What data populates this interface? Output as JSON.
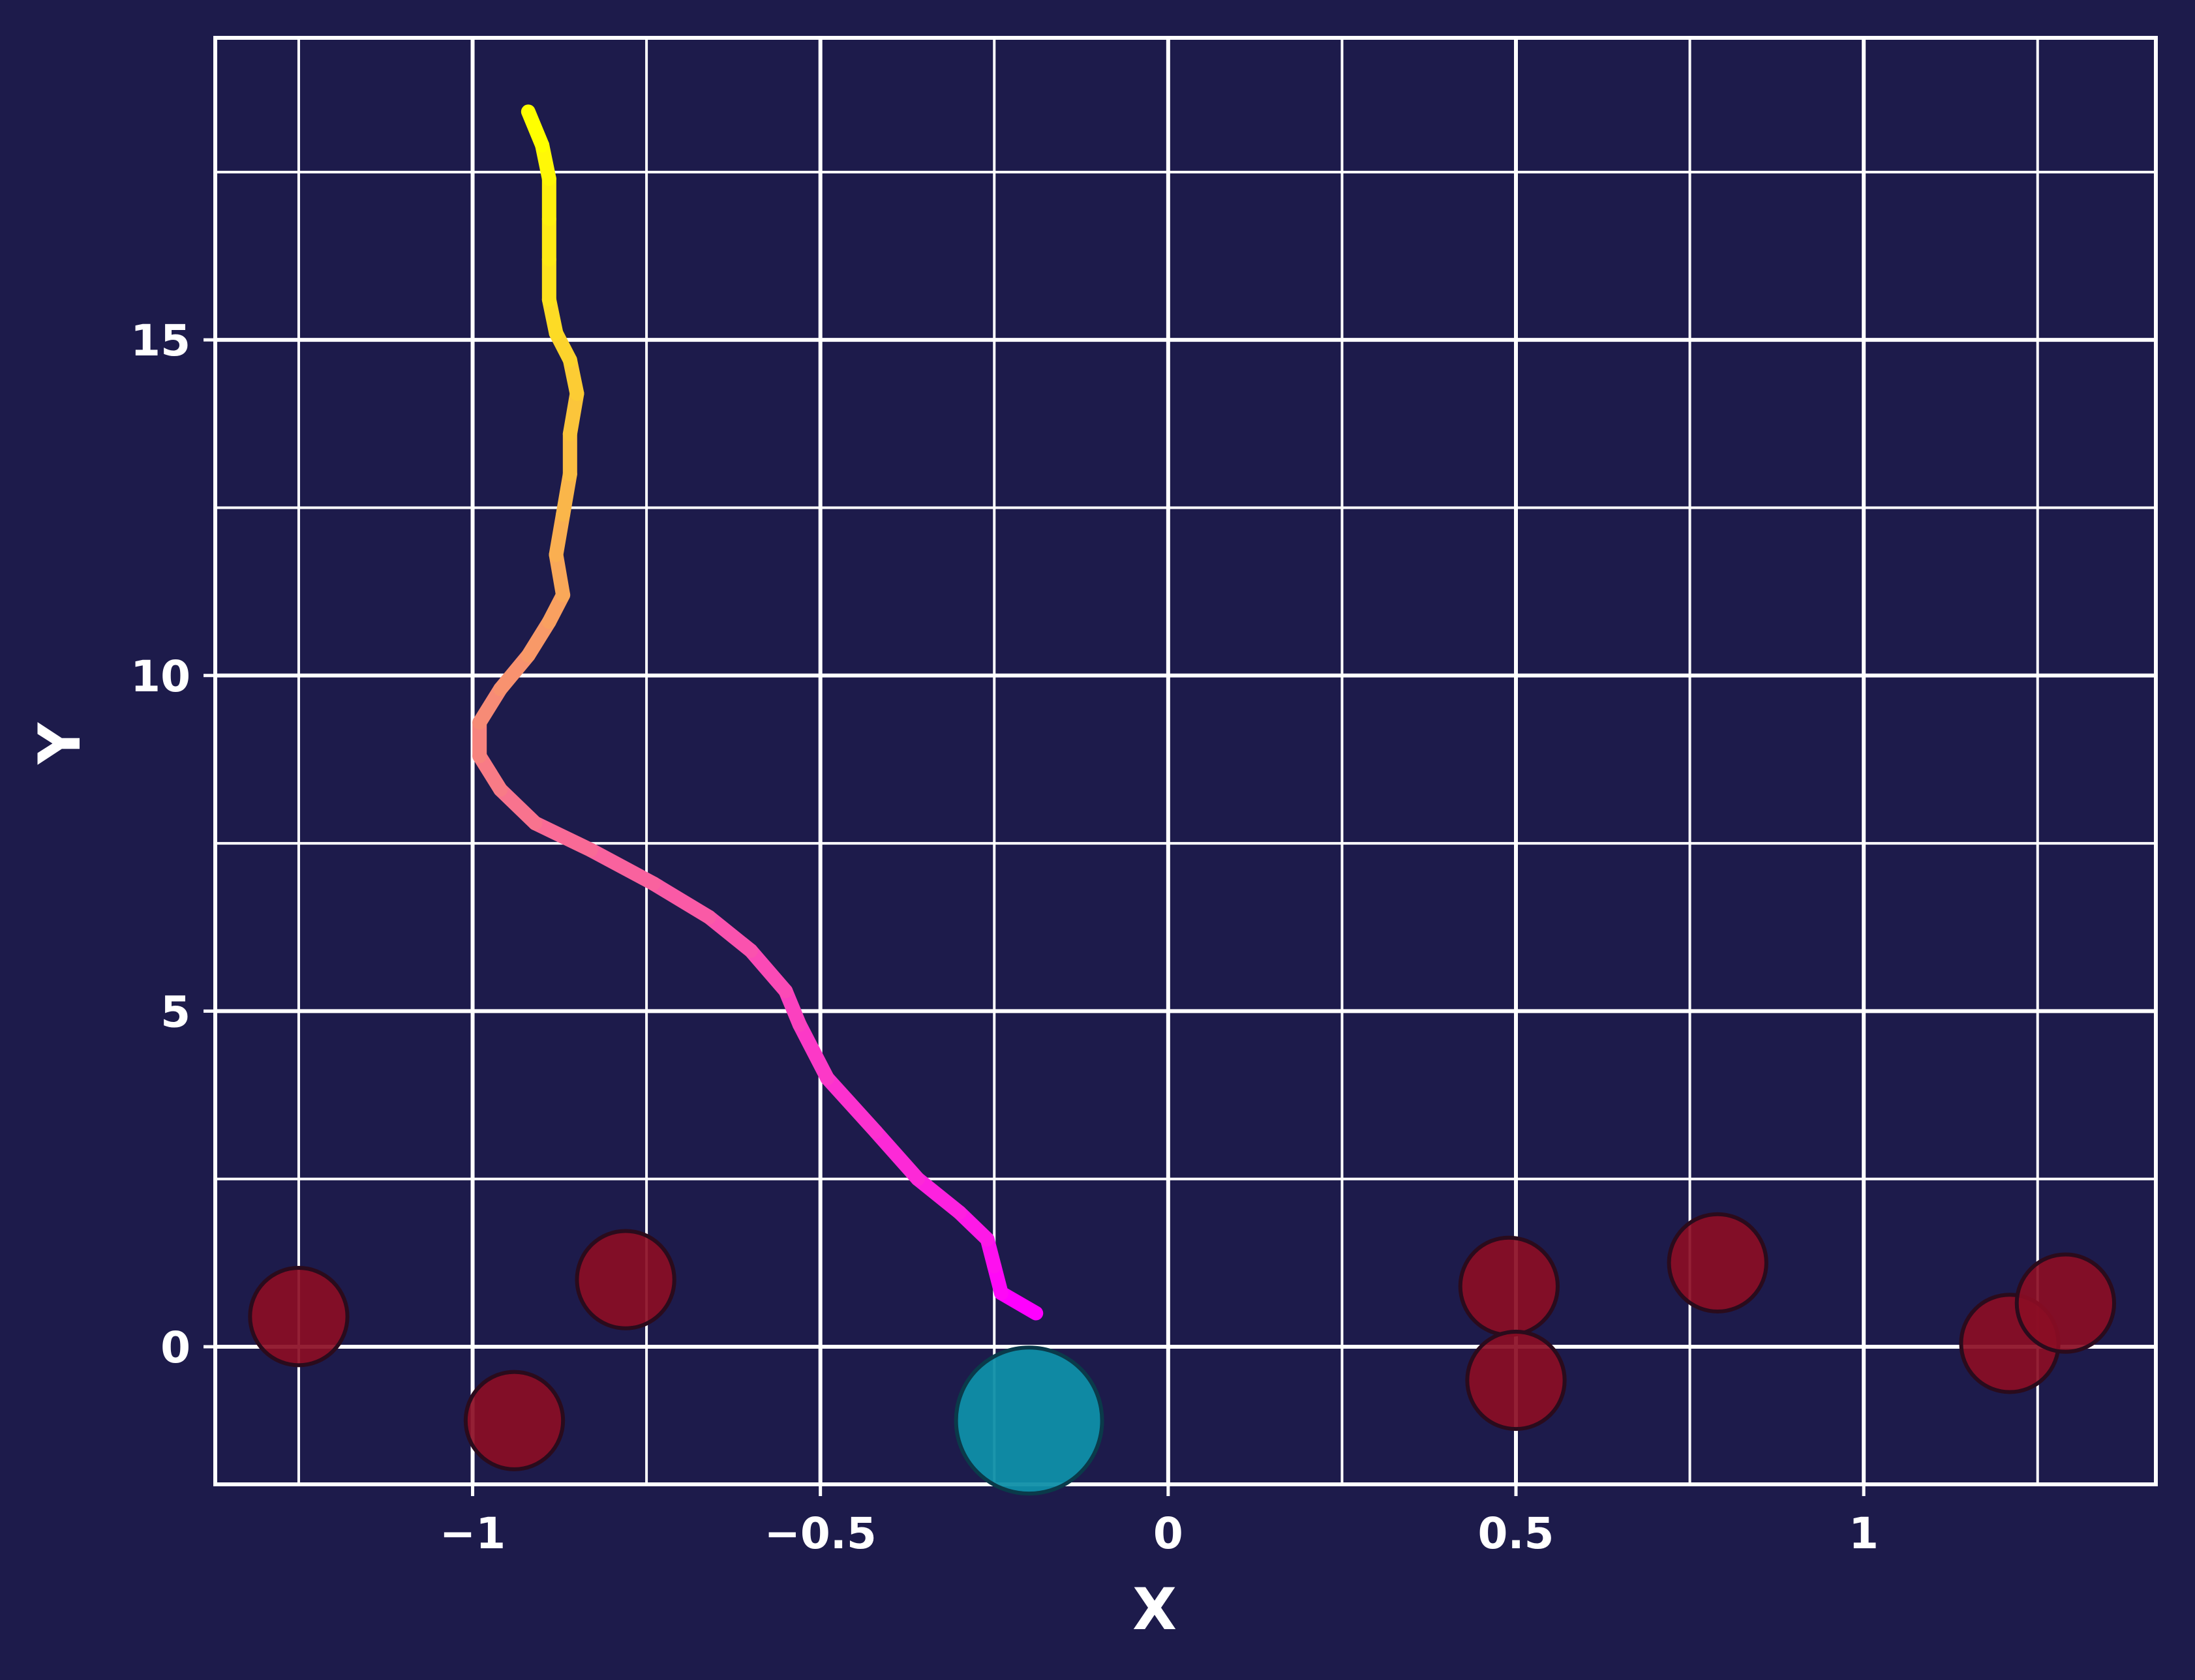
{
  "chart_data": {
    "type": "scatter",
    "title": "",
    "xlabel": "X",
    "ylabel": "Y",
    "xlim": [
      -1.37,
      1.42
    ],
    "ylim": [
      -2.05,
      19.5
    ],
    "grid": true,
    "x_major_ticks": [
      -1,
      -0.5,
      0,
      0.5,
      1
    ],
    "x_minor_ticks": [
      -1.25,
      -0.75,
      -0.25,
      0.25,
      0.75,
      1.25
    ],
    "y_major_ticks": [
      0,
      5,
      10,
      15
    ],
    "y_minor_ticks": [
      2.5,
      7.5,
      12.5,
      17.5
    ],
    "x_tick_labels": [
      "−1",
      "−0.5",
      "0",
      "0.5",
      "1"
    ],
    "y_tick_labels": [
      "0",
      "5",
      "10",
      "15"
    ],
    "colors": {
      "background": "#1d1b4b",
      "grid": "#ffffff",
      "obstacle": "#8b0d24",
      "goal": "#0f8fa8",
      "path_start": "#ff00ff",
      "path_mid": "#f7877a",
      "path_end": "#ffff00"
    },
    "path": {
      "points": [
        [
          -0.19,
          0.5
        ],
        [
          -0.24,
          0.8
        ],
        [
          -0.25,
          1.2
        ],
        [
          -0.26,
          1.6
        ],
        [
          -0.3,
          2.0
        ],
        [
          -0.36,
          2.5
        ],
        [
          -0.42,
          3.2
        ],
        [
          -0.49,
          4.0
        ],
        [
          -0.53,
          4.8
        ],
        [
          -0.55,
          5.3
        ],
        [
          -0.6,
          5.9
        ],
        [
          -0.66,
          6.4
        ],
        [
          -0.74,
          6.9
        ],
        [
          -0.83,
          7.4
        ],
        [
          -0.91,
          7.8
        ],
        [
          -0.96,
          8.3
        ],
        [
          -0.99,
          8.8
        ],
        [
          -0.99,
          9.3
        ],
        [
          -0.96,
          9.8
        ],
        [
          -0.92,
          10.3
        ],
        [
          -0.89,
          10.8
        ],
        [
          -0.87,
          11.2
        ],
        [
          -0.88,
          11.8
        ],
        [
          -0.87,
          12.4
        ],
        [
          -0.86,
          13.0
        ],
        [
          -0.86,
          13.6
        ],
        [
          -0.85,
          14.2
        ],
        [
          -0.86,
          14.7
        ],
        [
          -0.88,
          15.1
        ],
        [
          -0.89,
          15.6
        ],
        [
          -0.89,
          16.2
        ],
        [
          -0.89,
          16.8
        ],
        [
          -0.89,
          17.4
        ],
        [
          -0.9,
          17.9
        ],
        [
          -0.92,
          18.4
        ]
      ]
    },
    "obstacles": [
      {
        "x": -1.25,
        "y": 0.45,
        "r": 0.07
      },
      {
        "x": -0.78,
        "y": 1.0,
        "r": 0.07
      },
      {
        "x": -0.94,
        "y": -1.1,
        "r": 0.07
      },
      {
        "x": 0.49,
        "y": 0.9,
        "r": 0.07
      },
      {
        "x": 0.5,
        "y": -0.5,
        "r": 0.07
      },
      {
        "x": 0.79,
        "y": 1.25,
        "r": 0.07
      },
      {
        "x": 1.21,
        "y": 0.05,
        "r": 0.07
      },
      {
        "x": 1.29,
        "y": 0.65,
        "r": 0.07
      }
    ],
    "goal": {
      "x": -0.2,
      "y": -1.1,
      "r": 0.105
    }
  }
}
